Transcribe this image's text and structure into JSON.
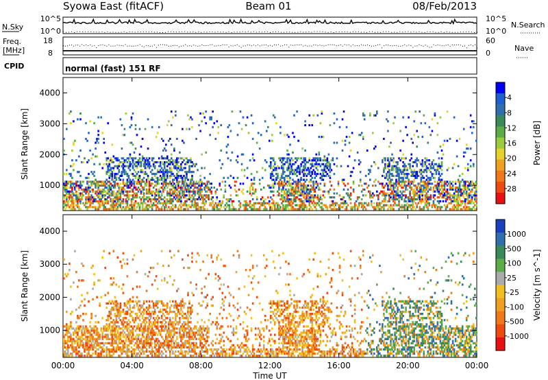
{
  "header": {
    "station": "Syowa East (fitACF)",
    "beam": "Beam 01",
    "date": "08/Feb/2013"
  },
  "strips": {
    "nsky": {
      "label": "N.Sky",
      "right_label": "N.Search",
      "ticks_left": [
        "10^5",
        "10^0"
      ],
      "ticks_right": [
        "10^5",
        "10^0"
      ]
    },
    "freq": {
      "label_line1": "Freq.",
      "label_line2": "[MHz]",
      "right_label": "Nave",
      "ticks_left": [
        "18",
        "8"
      ],
      "ticks_right": [
        "60",
        "0"
      ]
    },
    "cpid": {
      "label": "CPID",
      "program": "normal (fast) 151 RF"
    }
  },
  "chart_data": [
    {
      "type": "heatmap",
      "parameter": "power",
      "ylabel": "Slant Range [km]",
      "ylim": [
        180,
        4500
      ],
      "y_ticks": [
        1000,
        2000,
        3000,
        4000
      ],
      "xlim": [
        0,
        24
      ],
      "colorbar": {
        "label": "Power [dB]",
        "tick_labels": [
          "4",
          "8",
          "12",
          "16",
          "20",
          "24",
          "28"
        ],
        "colors": [
          "#0000ff",
          "#1e5fd2",
          "#2f6fae",
          "#3a8a5a",
          "#5aae45",
          "#9bcc3c",
          "#e6d22a",
          "#f0a020",
          "#f07818",
          "#f04a10",
          "#e81010"
        ]
      }
    },
    {
      "type": "heatmap",
      "parameter": "velocity",
      "ylabel": "Slant Range [km]",
      "ylim": [
        180,
        4500
      ],
      "y_ticks": [
        1000,
        2000,
        3000,
        4000
      ],
      "xlim": [
        0,
        24
      ],
      "colorbar": {
        "label": "Velocity [m s^-1]",
        "tick_labels": [
          "1000",
          "500",
          "100",
          "25",
          "-25",
          "-100",
          "-500",
          "-1000"
        ],
        "colors": [
          "#1840c0",
          "#2f6fae",
          "#3a8a5a",
          "#5aae45",
          "#aaaaaa",
          "#f0c020",
          "#f0a020",
          "#f07818",
          "#f04a10",
          "#e81010"
        ]
      }
    }
  ],
  "xaxis": {
    "label": "Time UT",
    "tick_labels": [
      "00:00",
      "04:00",
      "08:00",
      "12:00",
      "16:00",
      "20:00",
      "00:00"
    ]
  }
}
